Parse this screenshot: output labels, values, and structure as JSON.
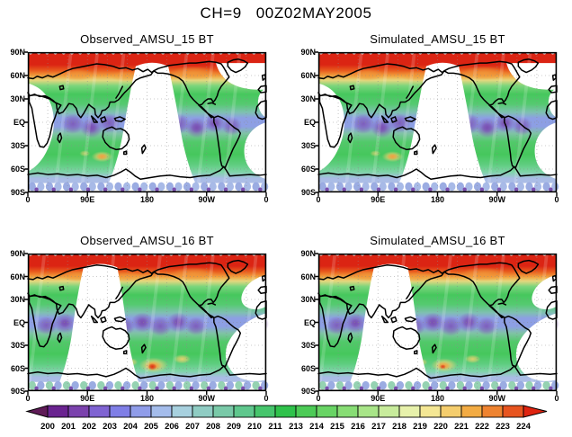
{
  "title": "CH=9   00Z02MAY2005",
  "panels": [
    {
      "title": "Observed_AMSU_15 BT",
      "swath": "A",
      "hotspot": "mild"
    },
    {
      "title": "Simulated_AMSU_15 BT",
      "swath": "A",
      "hotspot": "mild"
    },
    {
      "title": "Observed_AMSU_16 BT",
      "swath": "B",
      "hotspot": "strong"
    },
    {
      "title": "Simulated_AMSU_16 BT",
      "swath": "B",
      "hotspot": "moderate"
    }
  ],
  "axes": {
    "lat_labels": [
      "90N",
      "60N",
      "30N",
      "EQ",
      "30S",
      "60S",
      "90S"
    ],
    "lon_labels": [
      "0",
      "90E",
      "180",
      "90W",
      "0"
    ]
  },
  "colorbar": {
    "tick_labels": [
      "200",
      "201",
      "202",
      "203",
      "204",
      "205",
      "206",
      "207",
      "208",
      "209",
      "210",
      "211",
      "213",
      "214",
      "215",
      "216",
      "217",
      "218",
      "219",
      "220",
      "221",
      "222",
      "223",
      "224"
    ],
    "box_colors": [
      "#6a2390",
      "#7b42ad",
      "#7f63d2",
      "#7f7ee6",
      "#8f9ce9",
      "#a4bceb",
      "#a7d0de",
      "#8fccc3",
      "#79c9a8",
      "#5fc78d",
      "#46c56c",
      "#2fc24b",
      "#4ccb56",
      "#68d464",
      "#87dd74",
      "#a8e588",
      "#c8ec9c",
      "#e7f1ab",
      "#f4e794",
      "#f4cd6d",
      "#f2ab43",
      "#ee8330",
      "#e7541f"
    ],
    "arrow_left_color": "#5f1b57",
    "arrow_right_color": "#df2410"
  },
  "field_colors": {
    "polar_red": "#db2413",
    "orange": "#f2a33e",
    "green": "#46c75d",
    "light_green": "#7bd57c",
    "tropic_blue": "#8d9fe4",
    "purple": "#7a4fb2",
    "south_teal": "#7fd4a8",
    "polar_periwinkle": "#a9bce6",
    "scallop_blue": "#96a8e0",
    "scallop_teal": "#8fd0ae",
    "scallop_purple": "#7b4fae",
    "hot_yellow": "#f4d271",
    "hot_orange": "#f09738",
    "hot_red": "#dd2912",
    "north_orange": "#f0983a",
    "no_data": "#ffffff",
    "coastline": "#000000"
  },
  "chart_data": {
    "type": "heatmap",
    "title": "CH=9 00Z02MAY2005",
    "channel": 9,
    "valid_time": "00Z02MAY2005",
    "variable": "BT",
    "grid": {
      "rows": 2,
      "cols": 2
    },
    "panel_titles": [
      "Observed_AMSU_15 BT",
      "Simulated_AMSU_15 BT",
      "Observed_AMSU_16 BT",
      "Simulated_AMSU_16 BT"
    ],
    "x_ticks": [
      "0",
      "90E",
      "180",
      "90W",
      "0"
    ],
    "y_ticks": [
      "90N",
      "60N",
      "30N",
      "EQ",
      "30S",
      "60S",
      "90S"
    ],
    "colorbar_ticks": [
      200,
      201,
      202,
      203,
      204,
      205,
      206,
      207,
      208,
      209,
      210,
      211,
      213,
      214,
      215,
      216,
      217,
      218,
      219,
      220,
      221,
      222,
      223,
      224
    ],
    "colorbar_range": [
      200,
      224
    ],
    "legend_position": "bottom",
    "notes": "Global filled-contour maps of AMSU brightness temperature (K). High values (orange/red, 218-224) at high northern latitudes and isolated southern-ocean storm spots; low values (blue/purple, 200-206) in the tropics; greens (210-217) at mid-latitudes; white curved swaths are satellite data gaps (different orbit gaps for AMSU 15 vs AMSU 16 panels)."
  }
}
